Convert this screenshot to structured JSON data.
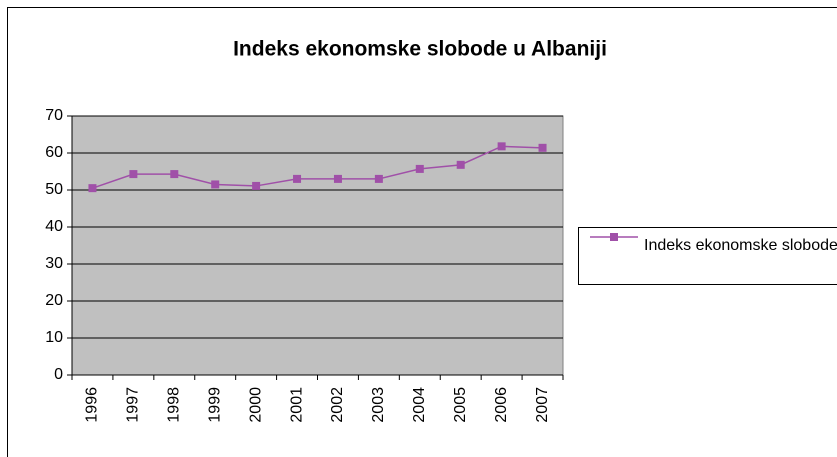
{
  "chart_data": {
    "type": "line",
    "title": "Indeks ekonomske slobode u Albaniji",
    "categories": [
      "1996",
      "1997",
      "1998",
      "1999",
      "2000",
      "2001",
      "2002",
      "2003",
      "2004",
      "2005",
      "2006",
      "2007"
    ],
    "series": [
      {
        "name": "Indeks ekonomske slobode",
        "color": "#a050a8",
        "values": [
          50.5,
          54.3,
          54.3,
          51.5,
          51.1,
          53,
          53,
          53,
          55.7,
          56.8,
          61.8,
          61.4
        ]
      }
    ],
    "ylim": [
      0,
      70
    ],
    "yticks": [
      0,
      10,
      20,
      30,
      40,
      50,
      60,
      70
    ],
    "grid": true,
    "legend": "right",
    "plot_background": "#c0c0c0"
  }
}
